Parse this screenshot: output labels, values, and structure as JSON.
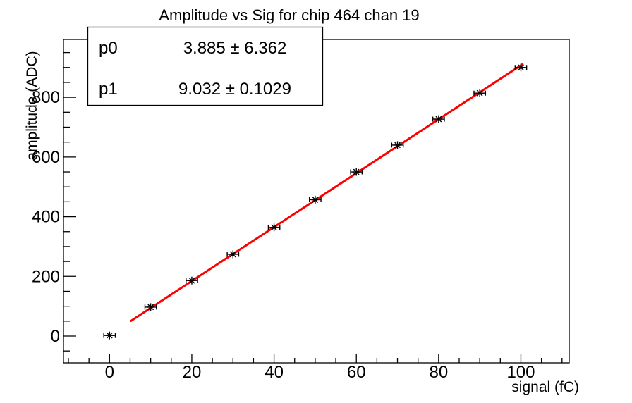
{
  "title": "Amplitude vs Sig for chip 464 chan 19",
  "stats_box": {
    "rows": [
      {
        "name": "p0",
        "value": "3.885 ± 6.362"
      },
      {
        "name": "p1",
        "value": "9.032 ± 0.1029"
      }
    ]
  },
  "colors": {
    "background": "#ffffff",
    "axis": "#000000",
    "marker": "#000000",
    "fit_line": "#ff0000"
  },
  "chart_data": {
    "type": "scatter",
    "title": "Amplitude vs Sig for chip 464 chan 19",
    "xlabel": "signal (fC)",
    "ylabel": "amplitude (ADC)",
    "x": [
      0,
      10,
      20,
      30,
      40,
      50,
      60,
      70,
      80,
      90,
      100
    ],
    "y": [
      2,
      97,
      186,
      274,
      364,
      457,
      550,
      640,
      727,
      814,
      900
    ],
    "x_err": 1.4,
    "marker": "asterisk",
    "xlim": [
      -11.2,
      111.75
    ],
    "ylim": [
      -89.7,
      993.9
    ],
    "x_major_ticks": [
      0,
      20,
      40,
      60,
      80,
      100
    ],
    "x_minor": {
      "start": -10,
      "end": 110,
      "step": 5
    },
    "y_major_ticks": [
      0,
      200,
      400,
      600,
      800
    ],
    "y_minor": {
      "start": -50,
      "end": 950,
      "step": 50
    },
    "grid": false,
    "legend": null,
    "fit": {
      "p0": 3.885,
      "p0_err": 6.362,
      "p1": 9.032,
      "p1_err": 0.1029,
      "x_start": 5.2,
      "x_end": 100.4
    }
  }
}
